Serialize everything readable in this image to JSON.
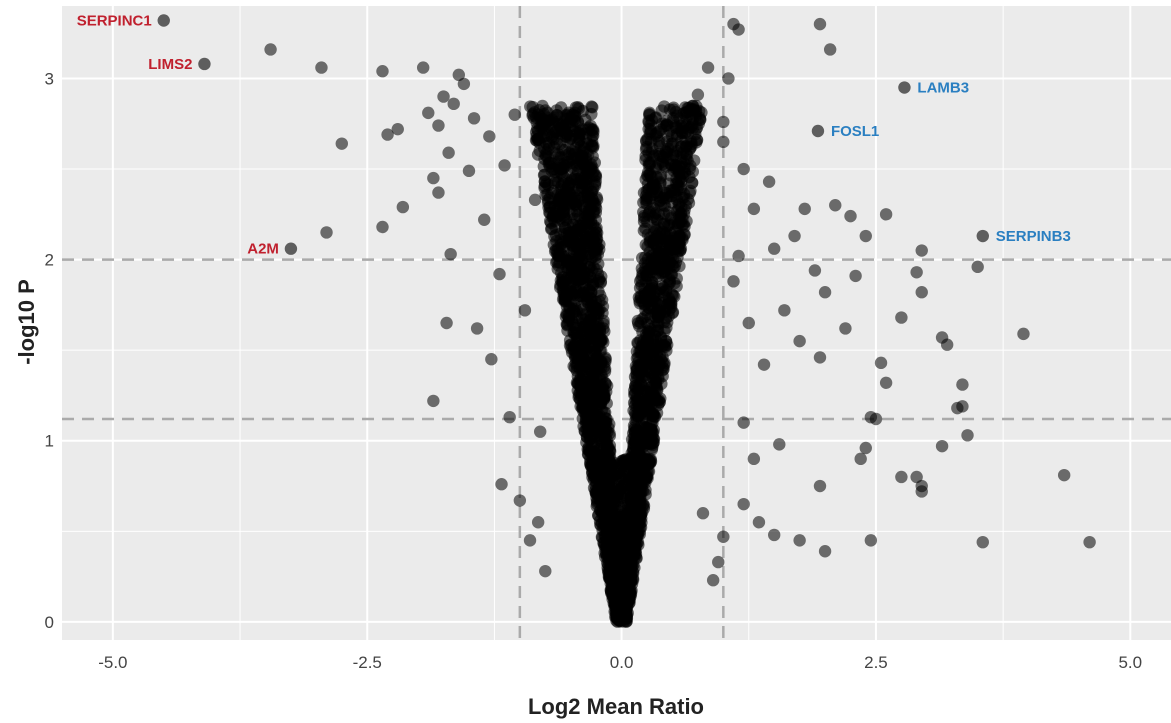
{
  "chart_data": {
    "type": "scatter",
    "title": "",
    "xlabel": "Log2 Mean Ratio",
    "ylabel": "-log10 P",
    "xlim": [
      -5.5,
      5.4
    ],
    "ylim": [
      -0.1,
      3.4
    ],
    "xticks": [
      {
        "value": -5.0,
        "label": "-5.0"
      },
      {
        "value": -2.5,
        "label": "-2.5"
      },
      {
        "value": 0.0,
        "label": "0.0"
      },
      {
        "value": 2.5,
        "label": "2.5"
      },
      {
        "value": 5.0,
        "label": "5.0"
      }
    ],
    "yticks": [
      {
        "value": 0,
        "label": "0"
      },
      {
        "value": 1,
        "label": "1"
      },
      {
        "value": 2,
        "label": "2"
      },
      {
        "value": 3,
        "label": "3"
      }
    ],
    "grid": true,
    "threshold_lines": {
      "x": [
        -1.0,
        1.0
      ],
      "y": [
        2.0,
        1.12
      ]
    },
    "colors": {
      "panel_background": "#ebebeb",
      "grid": "#ffffff",
      "point": "#000000",
      "threshold_line": "#aaaaaa",
      "label_down": "#c0202e",
      "label_up": "#2a7fc1"
    },
    "labeled_points": [
      {
        "gene": "SERPINC1",
        "x": -4.5,
        "y": 3.32,
        "direction": "down"
      },
      {
        "gene": "LIMS2",
        "x": -4.1,
        "y": 3.08,
        "direction": "down"
      },
      {
        "gene": "A2M",
        "x": -3.25,
        "y": 2.06,
        "direction": "down"
      },
      {
        "gene": "LAMB3",
        "x": 2.78,
        "y": 2.95,
        "direction": "up"
      },
      {
        "gene": "FOSL1",
        "x": 1.93,
        "y": 2.71,
        "direction": "up"
      },
      {
        "gene": "SERPINB3",
        "x": 3.55,
        "y": 2.13,
        "direction": "up"
      }
    ],
    "points": [
      [
        -3.45,
        3.16
      ],
      [
        -2.95,
        3.06
      ],
      [
        -2.35,
        3.04
      ],
      [
        -2.75,
        2.64
      ],
      [
        -2.9,
        2.15
      ],
      [
        -2.35,
        2.18
      ],
      [
        -2.3,
        2.69
      ],
      [
        -2.2,
        2.72
      ],
      [
        -2.15,
        2.29
      ],
      [
        -1.95,
        3.06
      ],
      [
        -1.9,
        2.81
      ],
      [
        -1.85,
        2.45
      ],
      [
        -1.8,
        2.74
      ],
      [
        -1.8,
        2.37
      ],
      [
        -1.75,
        2.9
      ],
      [
        -1.7,
        2.59
      ],
      [
        -1.68,
        2.03
      ],
      [
        -1.65,
        2.86
      ],
      [
        -1.6,
        3.02
      ],
      [
        -1.55,
        2.97
      ],
      [
        -1.5,
        2.49
      ],
      [
        -1.45,
        2.78
      ],
      [
        -1.42,
        1.62
      ],
      [
        -1.72,
        1.65
      ],
      [
        -1.85,
        1.22
      ],
      [
        -1.35,
        2.22
      ],
      [
        -1.3,
        2.68
      ],
      [
        -1.28,
        1.45
      ],
      [
        -1.2,
        1.92
      ],
      [
        -1.18,
        0.76
      ],
      [
        -1.15,
        2.52
      ],
      [
        -1.1,
        1.13
      ],
      [
        -1.05,
        2.8
      ],
      [
        -1.0,
        0.67
      ],
      [
        -0.95,
        1.72
      ],
      [
        -0.9,
        0.45
      ],
      [
        -0.85,
        2.33
      ],
      [
        -0.82,
        0.55
      ],
      [
        -0.8,
        1.05
      ],
      [
        -0.75,
        0.28
      ],
      [
        1.1,
        3.3
      ],
      [
        1.15,
        3.27
      ],
      [
        1.05,
        3.0
      ],
      [
        1.95,
        3.3
      ],
      [
        2.05,
        3.16
      ],
      [
        0.85,
        3.06
      ],
      [
        0.75,
        2.91
      ],
      [
        1.0,
        2.76
      ],
      [
        1.2,
        2.5
      ],
      [
        1.45,
        2.43
      ],
      [
        1.8,
        2.28
      ],
      [
        2.1,
        2.3
      ],
      [
        2.25,
        2.24
      ],
      [
        2.4,
        2.13
      ],
      [
        2.6,
        2.25
      ],
      [
        1.5,
        2.06
      ],
      [
        1.7,
        2.13
      ],
      [
        1.9,
        1.94
      ],
      [
        2.0,
        1.82
      ],
      [
        2.3,
        1.91
      ],
      [
        2.95,
        2.05
      ],
      [
        2.9,
        1.93
      ],
      [
        2.95,
        1.82
      ],
      [
        3.5,
        1.96
      ],
      [
        3.15,
        1.57
      ],
      [
        3.2,
        1.53
      ],
      [
        3.95,
        1.59
      ],
      [
        2.2,
        1.62
      ],
      [
        2.55,
        1.43
      ],
      [
        2.6,
        1.32
      ],
      [
        2.75,
        1.68
      ],
      [
        1.6,
        1.72
      ],
      [
        1.75,
        1.55
      ],
      [
        1.95,
        1.46
      ],
      [
        3.35,
        1.31
      ],
      [
        3.35,
        1.19
      ],
      [
        3.3,
        1.18
      ],
      [
        2.45,
        1.13
      ],
      [
        2.5,
        1.12
      ],
      [
        1.2,
        1.1
      ],
      [
        3.4,
        1.03
      ],
      [
        3.15,
        0.97
      ],
      [
        2.4,
        0.96
      ],
      [
        2.35,
        0.9
      ],
      [
        2.75,
        0.8
      ],
      [
        2.9,
        0.8
      ],
      [
        2.95,
        0.75
      ],
      [
        2.95,
        0.72
      ],
      [
        4.35,
        0.81
      ],
      [
        4.6,
        0.44
      ],
      [
        3.55,
        0.44
      ],
      [
        2.45,
        0.45
      ],
      [
        1.75,
        0.45
      ],
      [
        2.0,
        0.39
      ],
      [
        1.95,
        0.75
      ],
      [
        1.5,
        0.48
      ],
      [
        1.35,
        0.55
      ],
      [
        1.2,
        0.65
      ],
      [
        1.0,
        0.47
      ],
      [
        0.95,
        0.33
      ],
      [
        0.9,
        0.23
      ],
      [
        0.8,
        0.6
      ],
      [
        1.3,
        0.9
      ],
      [
        1.55,
        0.98
      ],
      [
        1.4,
        1.42
      ],
      [
        1.25,
        1.65
      ],
      [
        1.1,
        1.88
      ],
      [
        1.15,
        2.02
      ],
      [
        1.3,
        2.28
      ],
      [
        1.0,
        2.65
      ]
    ]
  }
}
